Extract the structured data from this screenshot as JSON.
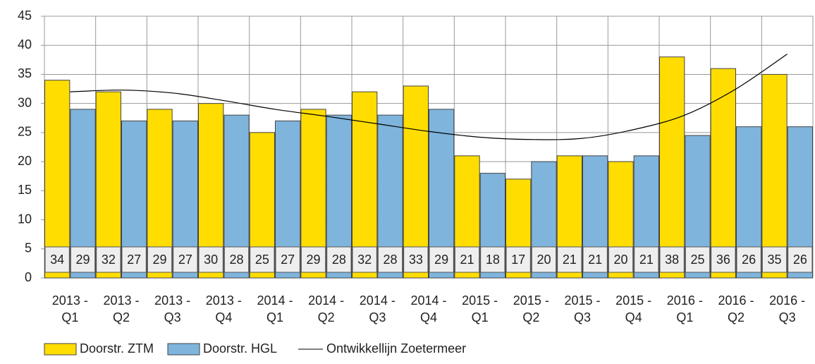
{
  "chart_data": {
    "type": "bar",
    "categories": [
      "2013 - Q1",
      "2013 - Q2",
      "2013 - Q3",
      "2013 - Q4",
      "2014 - Q1",
      "2014 - Q2",
      "2014 - Q3",
      "2014 - Q4",
      "2015 - Q1",
      "2015 - Q2",
      "2015 - Q3",
      "2015 - Q4",
      "2016 - Q1",
      "2016 - Q2",
      "2016 - Q3"
    ],
    "series": [
      {
        "name": "Doorstr. ZTM",
        "color": "#ffdd00",
        "values": [
          34,
          32,
          29,
          30,
          25,
          29,
          32,
          33,
          21,
          17,
          21,
          20,
          38,
          36,
          35
        ]
      },
      {
        "name": "Doorstr. HGL",
        "color": "#7fb4dc",
        "values": [
          29,
          27,
          27,
          28,
          27,
          28,
          28,
          29,
          18,
          20,
          21,
          21,
          24.5,
          26,
          26
        ],
        "value_labels": [
          "29",
          "27",
          "27",
          "28",
          "27",
          "28",
          "28",
          "29",
          "18",
          "20",
          "21",
          "21",
          "25",
          "26",
          "26"
        ]
      },
      {
        "name": "Ontwikkellijn Zoetermeer",
        "type": "line",
        "color": "#000000",
        "values": [
          32,
          32.3,
          31.8,
          30.5,
          29,
          27.8,
          26.5,
          25.2,
          24.2,
          23.8,
          24,
          25.5,
          28,
          32.5,
          38.5
        ]
      }
    ],
    "ylim": [
      0,
      45
    ],
    "yticks": [
      0,
      5,
      10,
      15,
      20,
      25,
      30,
      35,
      40,
      45
    ],
    "grid": true,
    "legend": "bottom"
  }
}
